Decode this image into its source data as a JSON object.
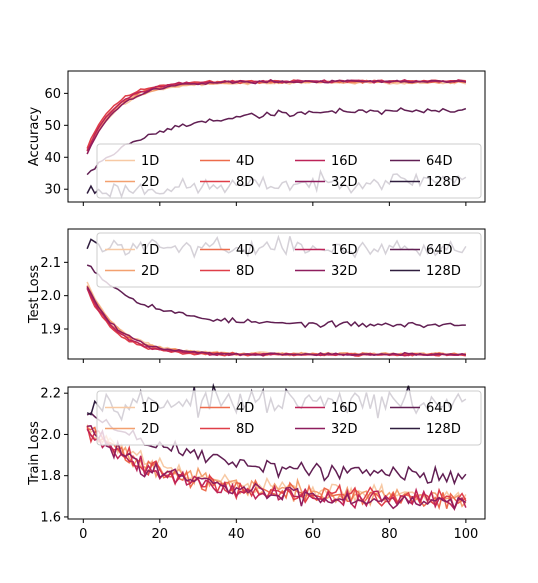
{
  "chart_data": [
    {
      "type": "line",
      "ylabel": "Accuracy",
      "xlim": [
        -4,
        105
      ],
      "ylim": [
        26,
        67
      ],
      "yticks": [
        30,
        40,
        50,
        60
      ],
      "xticks": [
        0,
        20,
        40,
        60,
        80,
        100
      ],
      "show_xticklabels": false,
      "legend": "lower-right",
      "series": [
        {
          "name": "1D",
          "color": "#f7c9a4",
          "kind": "sat",
          "start": 41,
          "end": 63.3,
          "tau": 8,
          "noise": 0.2,
          "seed": 3
        },
        {
          "name": "2D",
          "color": "#f3a06f",
          "kind": "sat",
          "start": 42,
          "end": 63.5,
          "tau": 8,
          "noise": 0.2,
          "seed": 5
        },
        {
          "name": "4D",
          "color": "#ed6b4b",
          "kind": "sat",
          "start": 42,
          "end": 63.7,
          "tau": 7.5,
          "noise": 0.2,
          "seed": 7
        },
        {
          "name": "8D",
          "color": "#df3e48",
          "kind": "sat",
          "start": 43,
          "end": 63.8,
          "tau": 7,
          "noise": 0.2,
          "seed": 11
        },
        {
          "name": "16D",
          "color": "#bd2358",
          "kind": "sat",
          "start": 42,
          "end": 63.8,
          "tau": 7.5,
          "noise": 0.2,
          "seed": 13
        },
        {
          "name": "32D",
          "color": "#8e1d5e",
          "kind": "sat",
          "start": 41,
          "end": 63.7,
          "tau": 8,
          "noise": 0.2,
          "seed": 17
        },
        {
          "name": "64D",
          "color": "#611f53",
          "kind": "sat",
          "start": 35,
          "end": 54.8,
          "tau": 18,
          "noise": 0.5,
          "seed": 19
        },
        {
          "name": "128D",
          "color": "#2f1d3e",
          "kind": "flat",
          "start": 29.5,
          "end": 33.5,
          "noise": 1.3,
          "seed": 23
        }
      ]
    },
    {
      "type": "line",
      "ylabel": "Test Loss",
      "xlim": [
        -4,
        105
      ],
      "ylim": [
        1.81,
        2.2
      ],
      "yticks": [
        1.9,
        2.0,
        2.1
      ],
      "xticks": [
        0,
        20,
        40,
        60,
        80,
        100
      ],
      "show_xticklabels": false,
      "legend": "upper-right",
      "series": [
        {
          "name": "1D",
          "color": "#f7c9a4",
          "kind": "sat",
          "start": 2.04,
          "end": 1.826,
          "tau": 8,
          "noise": 0.002,
          "seed": 29
        },
        {
          "name": "2D",
          "color": "#f3a06f",
          "kind": "sat",
          "start": 2.035,
          "end": 1.825,
          "tau": 8,
          "noise": 0.002,
          "seed": 31
        },
        {
          "name": "4D",
          "color": "#ed6b4b",
          "kind": "sat",
          "start": 2.03,
          "end": 1.824,
          "tau": 7.5,
          "noise": 0.002,
          "seed": 37
        },
        {
          "name": "8D",
          "color": "#df3e48",
          "kind": "sat",
          "start": 2.02,
          "end": 1.823,
          "tau": 7,
          "noise": 0.002,
          "seed": 41
        },
        {
          "name": "16D",
          "color": "#bd2358",
          "kind": "sat",
          "start": 2.025,
          "end": 1.823,
          "tau": 7.5,
          "noise": 0.002,
          "seed": 43
        },
        {
          "name": "32D",
          "color": "#8e1d5e",
          "kind": "sat",
          "start": 2.03,
          "end": 1.824,
          "tau": 8,
          "noise": 0.002,
          "seed": 47
        },
        {
          "name": "64D",
          "color": "#611f53",
          "kind": "sat",
          "start": 2.1,
          "end": 1.912,
          "tau": 14,
          "noise": 0.004,
          "seed": 53
        },
        {
          "name": "128D",
          "color": "#2f1d3e",
          "kind": "flat",
          "start": 2.15,
          "end": 2.14,
          "noise": 0.012,
          "seed": 59
        }
      ]
    },
    {
      "type": "line",
      "ylabel": "Train Loss",
      "xlim": [
        -4,
        105
      ],
      "ylim": [
        1.59,
        2.23
      ],
      "yticks": [
        1.6,
        1.8,
        2.0,
        2.2
      ],
      "xticks": [
        0,
        20,
        40,
        60,
        80,
        100
      ],
      "show_xticklabels": true,
      "legend": "upper-right",
      "series": [
        {
          "name": "1D",
          "color": "#f7c9a4",
          "kind": "sat",
          "start": 2.04,
          "end": 1.7,
          "tau": 22,
          "noise": 0.022,
          "seed": 61
        },
        {
          "name": "2D",
          "color": "#f3a06f",
          "kind": "sat",
          "start": 2.04,
          "end": 1.69,
          "tau": 22,
          "noise": 0.022,
          "seed": 67
        },
        {
          "name": "4D",
          "color": "#ed6b4b",
          "kind": "sat",
          "start": 2.03,
          "end": 1.685,
          "tau": 22,
          "noise": 0.022,
          "seed": 71
        },
        {
          "name": "8D",
          "color": "#df3e48",
          "kind": "sat",
          "start": 2.02,
          "end": 1.68,
          "tau": 22,
          "noise": 0.022,
          "seed": 73
        },
        {
          "name": "16D",
          "color": "#bd2358",
          "kind": "sat",
          "start": 2.02,
          "end": 1.675,
          "tau": 22,
          "noise": 0.022,
          "seed": 79
        },
        {
          "name": "32D",
          "color": "#8e1d5e",
          "kind": "sat",
          "start": 2.03,
          "end": 1.675,
          "tau": 22,
          "noise": 0.022,
          "seed": 83
        },
        {
          "name": "64D",
          "color": "#611f53",
          "kind": "sat",
          "start": 2.1,
          "end": 1.79,
          "tau": 28,
          "noise": 0.022,
          "seed": 89
        },
        {
          "name": "128D",
          "color": "#2f1d3e",
          "kind": "flat",
          "start": 2.16,
          "end": 2.15,
          "noise": 0.03,
          "seed": 97
        }
      ]
    }
  ]
}
